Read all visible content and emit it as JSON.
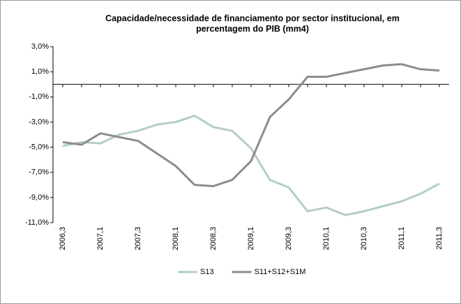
{
  "chart_data": {
    "type": "line",
    "title": [
      "Capacidade/necessidade de financiamento por sector institucional, em",
      "percentagem do PIB (mm4)"
    ],
    "categories": [
      "2006,3",
      null,
      "2007,1",
      null,
      "2007,3",
      null,
      "2008,1",
      null,
      "2008,3",
      null,
      "2009,1",
      null,
      "2009,3",
      null,
      "2010,1",
      null,
      "2010,3",
      null,
      "2011,1",
      null,
      "2011,3"
    ],
    "series": [
      {
        "name": "S13",
        "color": "#b4cccb",
        "values": [
          -4.9,
          -4.6,
          -4.7,
          -4.0,
          -3.7,
          -3.2,
          -3.0,
          -2.5,
          -3.4,
          -3.7,
          -5.1,
          -7.6,
          -8.2,
          -10.1,
          -9.8,
          -10.4,
          -10.1,
          -9.7,
          -9.3,
          -8.7,
          -7.9
        ]
      },
      {
        "name": "S11+S12+S1M",
        "color": "#8c8c8c",
        "values": [
          -4.6,
          -4.8,
          -3.9,
          -4.2,
          -4.5,
          -5.5,
          -6.5,
          -8.0,
          -8.1,
          -7.6,
          -6.1,
          -2.6,
          -1.2,
          0.6,
          0.6,
          0.9,
          1.2,
          1.5,
          1.6,
          1.2,
          1.1
        ]
      }
    ],
    "ylim": [
      -11,
      3
    ],
    "yticks": [
      {
        "value": -11,
        "label": "-11,0%"
      },
      {
        "value": -9,
        "label": "-9,0%"
      },
      {
        "value": -7,
        "label": "-7,0%"
      },
      {
        "value": -5,
        "label": "-5,0%"
      },
      {
        "value": -3,
        "label": "-3,0%"
      },
      {
        "value": -1,
        "label": "-1,0%"
      },
      {
        "value": 1,
        "label": "1,0%"
      },
      {
        "value": 3,
        "label": "3,0%"
      }
    ],
    "legend": "bottom"
  }
}
